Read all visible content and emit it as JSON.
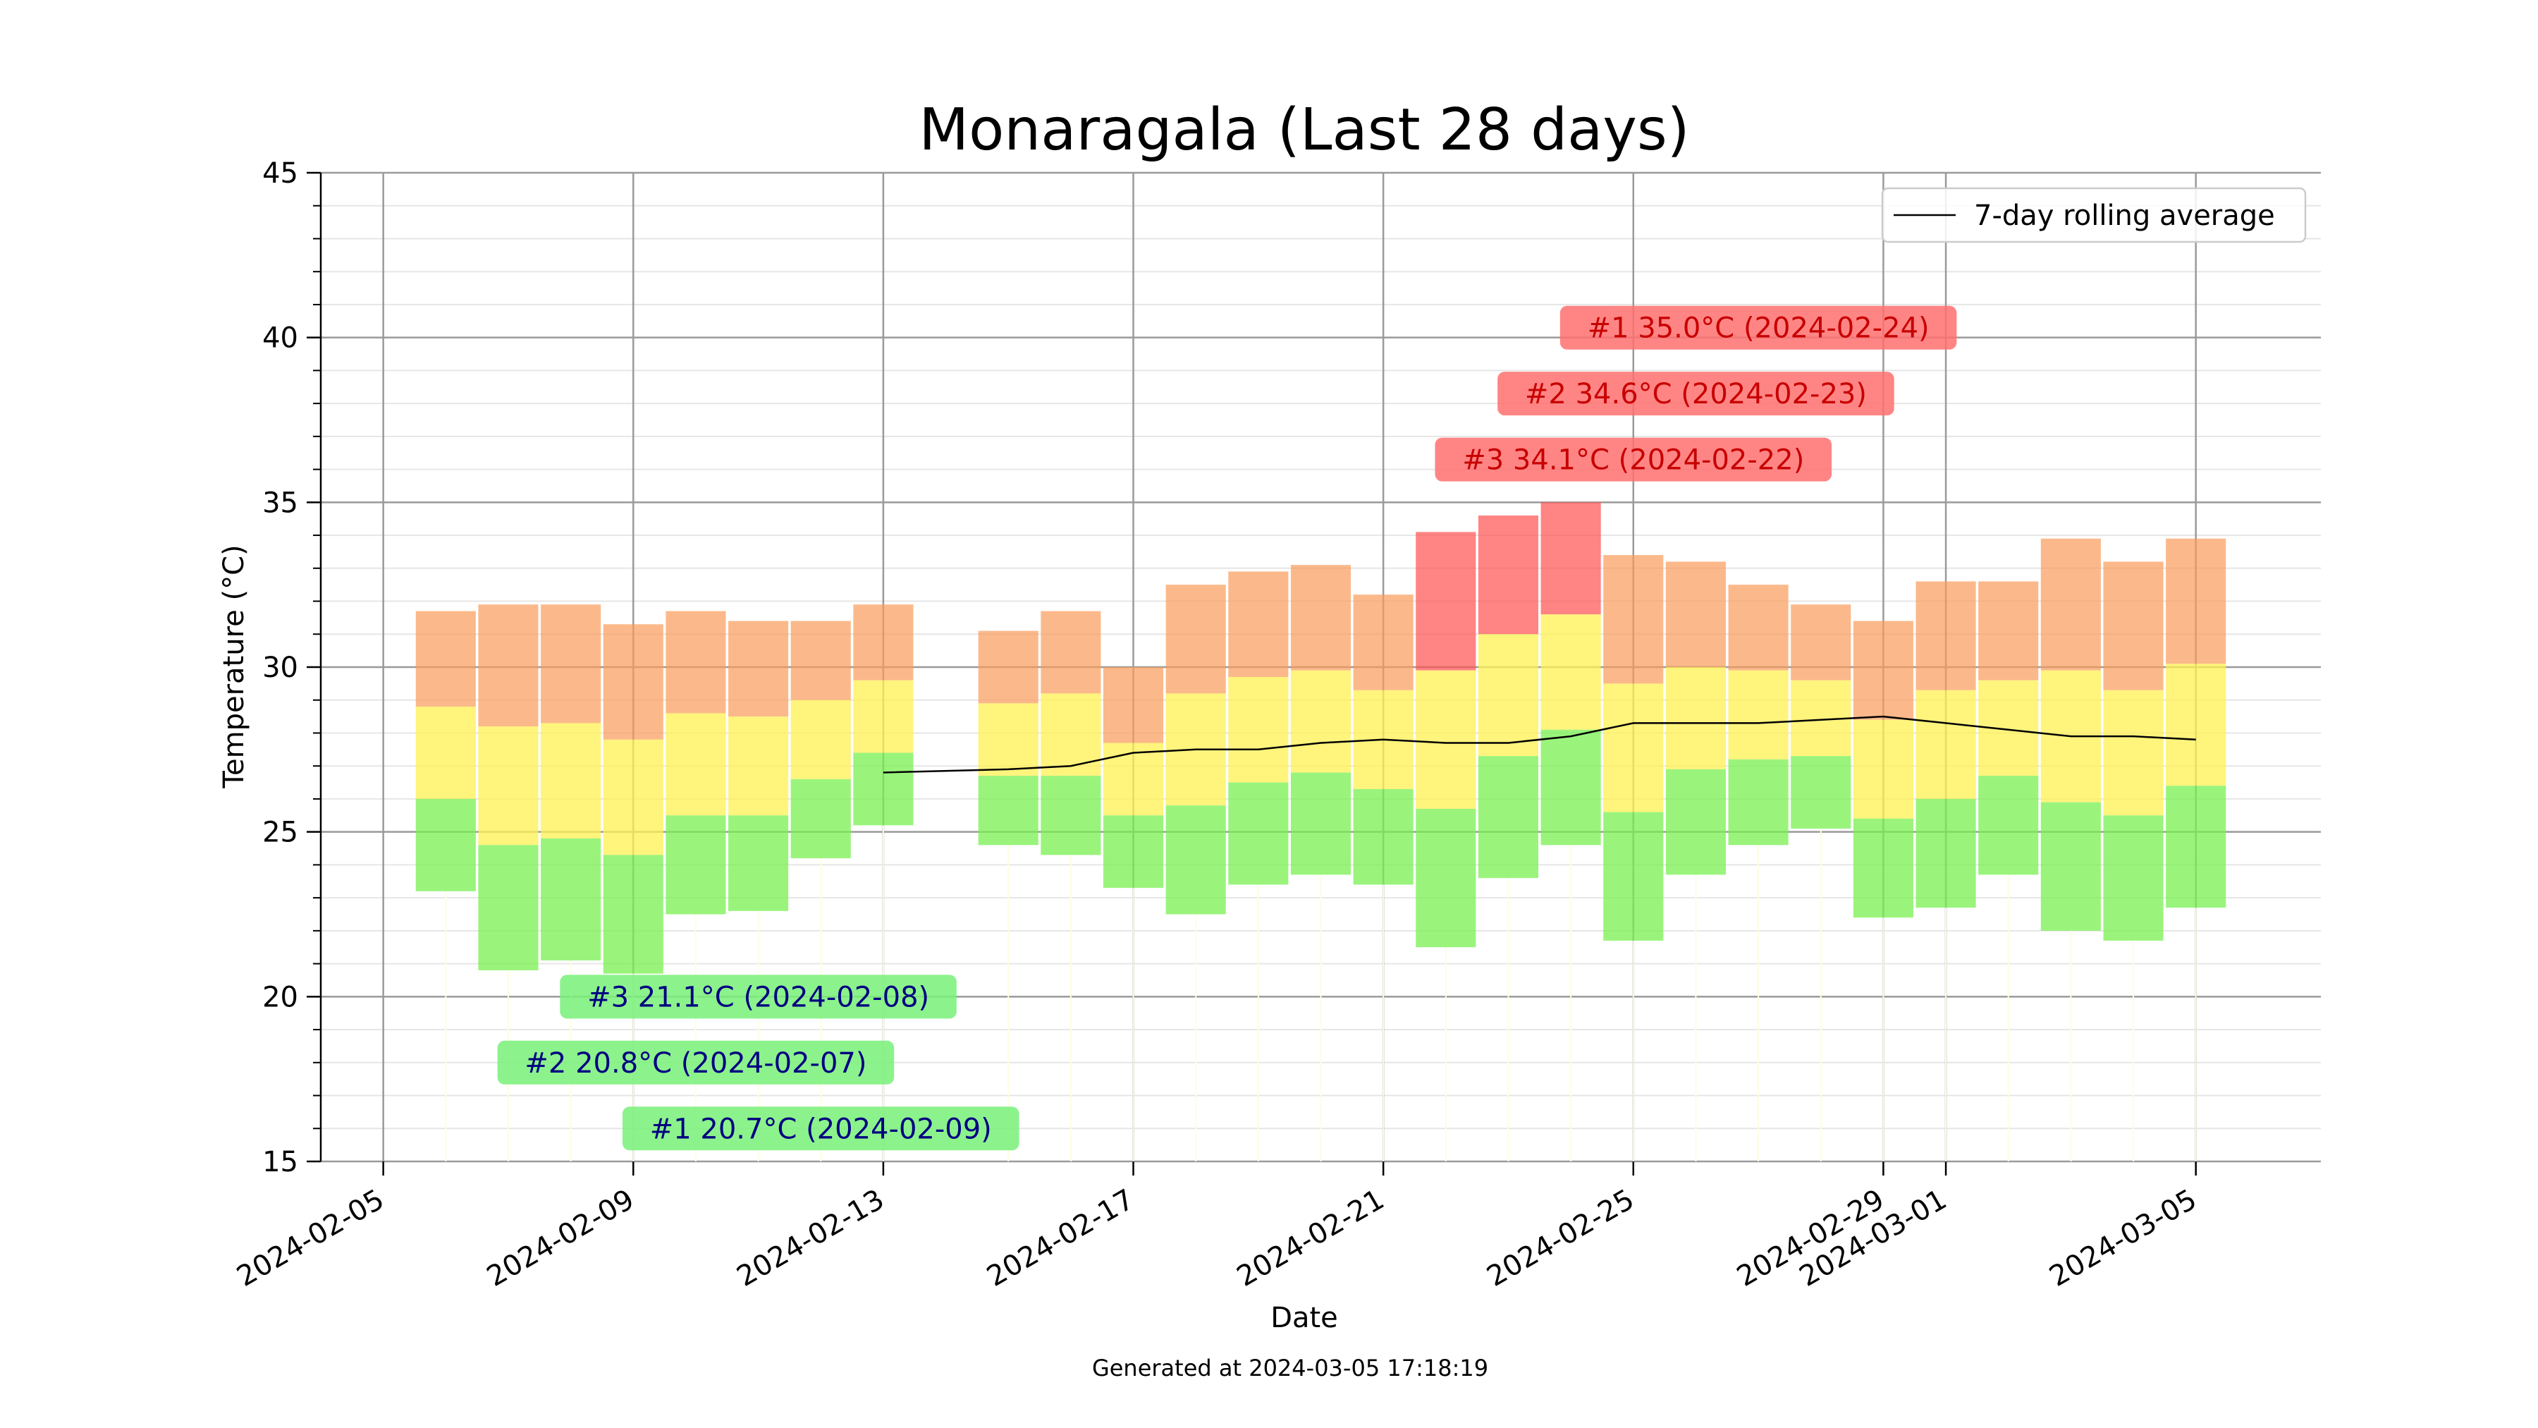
{
  "chart_data": {
    "type": "bar",
    "title": "Monaragala (Last 28 days)",
    "xlabel": "Date",
    "ylabel": "Temperature (°C)",
    "ylim": [
      15,
      45
    ],
    "xlim": [
      "2024-02-04",
      "2024-03-07"
    ],
    "grid": true,
    "legend_position": "top-right",
    "y_ticks": [
      15,
      20,
      25,
      30,
      35,
      40,
      45
    ],
    "x_ticks": [
      "2024-02-05",
      "2024-02-09",
      "2024-02-13",
      "2024-02-17",
      "2024-02-21",
      "2024-02-25",
      "2024-02-29",
      "2024-03-01",
      "2024-03-05"
    ],
    "colors": {
      "max_band": "#fa9b5a",
      "mean_band": "#fff050",
      "min_band": "#78f050",
      "hot_band": "#ff5050",
      "rolling_line": "#000000",
      "hot_label_bg": "#ff7070",
      "hot_label_text": "#c80000",
      "cold_label_bg": "#78f078",
      "cold_label_text": "#000080"
    },
    "series": [
      {
        "date": "2024-02-06",
        "min": 23.2,
        "mean": 26.0,
        "mean_high": 28.8,
        "max": 31.7
      },
      {
        "date": "2024-02-07",
        "min": 20.8,
        "mean": 24.6,
        "mean_high": 28.2,
        "max": 31.9
      },
      {
        "date": "2024-02-08",
        "min": 21.1,
        "mean": 24.8,
        "mean_high": 28.3,
        "max": 31.9
      },
      {
        "date": "2024-02-09",
        "min": 20.7,
        "mean": 24.3,
        "mean_high": 27.8,
        "max": 31.3
      },
      {
        "date": "2024-02-10",
        "min": 22.5,
        "mean": 25.5,
        "mean_high": 28.6,
        "max": 31.7
      },
      {
        "date": "2024-02-11",
        "min": 22.6,
        "mean": 25.5,
        "mean_high": 28.5,
        "max": 31.4
      },
      {
        "date": "2024-02-12",
        "min": 24.2,
        "mean": 26.6,
        "mean_high": 29.0,
        "max": 31.4
      },
      {
        "date": "2024-02-13",
        "min": 25.2,
        "mean": 27.4,
        "mean_high": 29.6,
        "max": 31.9
      },
      {
        "date": "2024-02-15",
        "min": 24.6,
        "mean": 26.7,
        "mean_high": 28.9,
        "max": 31.1
      },
      {
        "date": "2024-02-16",
        "min": 24.3,
        "mean": 26.7,
        "mean_high": 29.2,
        "max": 31.7
      },
      {
        "date": "2024-02-17",
        "min": 23.3,
        "mean": 25.5,
        "mean_high": 27.7,
        "max": 30.0
      },
      {
        "date": "2024-02-18",
        "min": 22.5,
        "mean": 25.8,
        "mean_high": 29.2,
        "max": 32.5
      },
      {
        "date": "2024-02-19",
        "min": 23.4,
        "mean": 26.5,
        "mean_high": 29.7,
        "max": 32.9
      },
      {
        "date": "2024-02-20",
        "min": 23.7,
        "mean": 26.8,
        "mean_high": 29.9,
        "max": 33.1
      },
      {
        "date": "2024-02-21",
        "min": 23.4,
        "mean": 26.3,
        "mean_high": 29.3,
        "max": 32.2
      },
      {
        "date": "2024-02-22",
        "min": 21.5,
        "mean": 25.7,
        "mean_high": 29.9,
        "max": 34.1
      },
      {
        "date": "2024-02-23",
        "min": 23.6,
        "mean": 27.3,
        "mean_high": 31.0,
        "max": 34.6
      },
      {
        "date": "2024-02-24",
        "min": 24.6,
        "mean": 28.1,
        "mean_high": 31.6,
        "max": 35.0
      },
      {
        "date": "2024-02-25",
        "min": 21.7,
        "mean": 25.6,
        "mean_high": 29.5,
        "max": 33.4
      },
      {
        "date": "2024-02-26",
        "min": 23.7,
        "mean": 26.9,
        "mean_high": 30.0,
        "max": 33.2
      },
      {
        "date": "2024-02-27",
        "min": 24.6,
        "mean": 27.2,
        "mean_high": 29.9,
        "max": 32.5
      },
      {
        "date": "2024-02-28",
        "min": 25.1,
        "mean": 27.3,
        "mean_high": 29.6,
        "max": 31.9
      },
      {
        "date": "2024-02-29",
        "min": 22.4,
        "mean": 25.4,
        "mean_high": 28.4,
        "max": 31.4
      },
      {
        "date": "2024-03-01",
        "min": 22.7,
        "mean": 26.0,
        "mean_high": 29.3,
        "max": 32.6
      },
      {
        "date": "2024-03-02",
        "min": 23.7,
        "mean": 26.7,
        "mean_high": 29.6,
        "max": 32.6
      },
      {
        "date": "2024-03-03",
        "min": 22.0,
        "mean": 25.9,
        "mean_high": 29.9,
        "max": 33.9
      },
      {
        "date": "2024-03-04",
        "min": 21.7,
        "mean": 25.5,
        "mean_high": 29.3,
        "max": 33.2
      },
      {
        "date": "2024-03-05",
        "min": 22.7,
        "mean": 26.4,
        "mean_high": 30.1,
        "max": 33.9
      }
    ],
    "rolling_average": {
      "name": "7-day rolling average",
      "points": [
        {
          "date": "2024-02-13",
          "value": 26.8
        },
        {
          "date": "2024-02-15",
          "value": 26.9
        },
        {
          "date": "2024-02-16",
          "value": 27.0
        },
        {
          "date": "2024-02-17",
          "value": 27.4
        },
        {
          "date": "2024-02-18",
          "value": 27.5
        },
        {
          "date": "2024-02-19",
          "value": 27.5
        },
        {
          "date": "2024-02-20",
          "value": 27.7
        },
        {
          "date": "2024-02-21",
          "value": 27.8
        },
        {
          "date": "2024-02-22",
          "value": 27.7
        },
        {
          "date": "2024-02-23",
          "value": 27.7
        },
        {
          "date": "2024-02-24",
          "value": 27.9
        },
        {
          "date": "2024-02-25",
          "value": 28.3
        },
        {
          "date": "2024-02-26",
          "value": 28.3
        },
        {
          "date": "2024-02-27",
          "value": 28.3
        },
        {
          "date": "2024-02-28",
          "value": 28.4
        },
        {
          "date": "2024-02-29",
          "value": 28.5
        },
        {
          "date": "2024-03-01",
          "value": 28.3
        },
        {
          "date": "2024-03-02",
          "value": 28.1
        },
        {
          "date": "2024-03-03",
          "value": 27.9
        },
        {
          "date": "2024-03-04",
          "value": 27.9
        },
        {
          "date": "2024-03-05",
          "value": 27.8
        }
      ]
    },
    "annotations": [
      {
        "kind": "hot",
        "text": "#1 35.0°C (2024-02-24)",
        "label_date": "2024-02-27",
        "label_value": 40.3
      },
      {
        "kind": "hot",
        "text": "#2 34.6°C (2024-02-23)",
        "label_date": "2024-02-26",
        "label_value": 38.3
      },
      {
        "kind": "hot",
        "text": "#3 34.1°C (2024-02-22)",
        "label_date": "2024-02-25",
        "label_value": 36.3
      },
      {
        "kind": "cold",
        "text": "#3 21.1°C (2024-02-08)",
        "label_date": "2024-02-11",
        "label_value": 20.0
      },
      {
        "kind": "cold",
        "text": "#2 20.8°C (2024-02-07)",
        "label_date": "2024-02-10",
        "label_value": 18.0
      },
      {
        "kind": "cold",
        "text": "#1 20.7°C (2024-02-09)",
        "label_date": "2024-02-12",
        "label_value": 16.0
      }
    ]
  },
  "footer": {
    "generated": "Generated at 2024-03-05 17:18:19"
  }
}
